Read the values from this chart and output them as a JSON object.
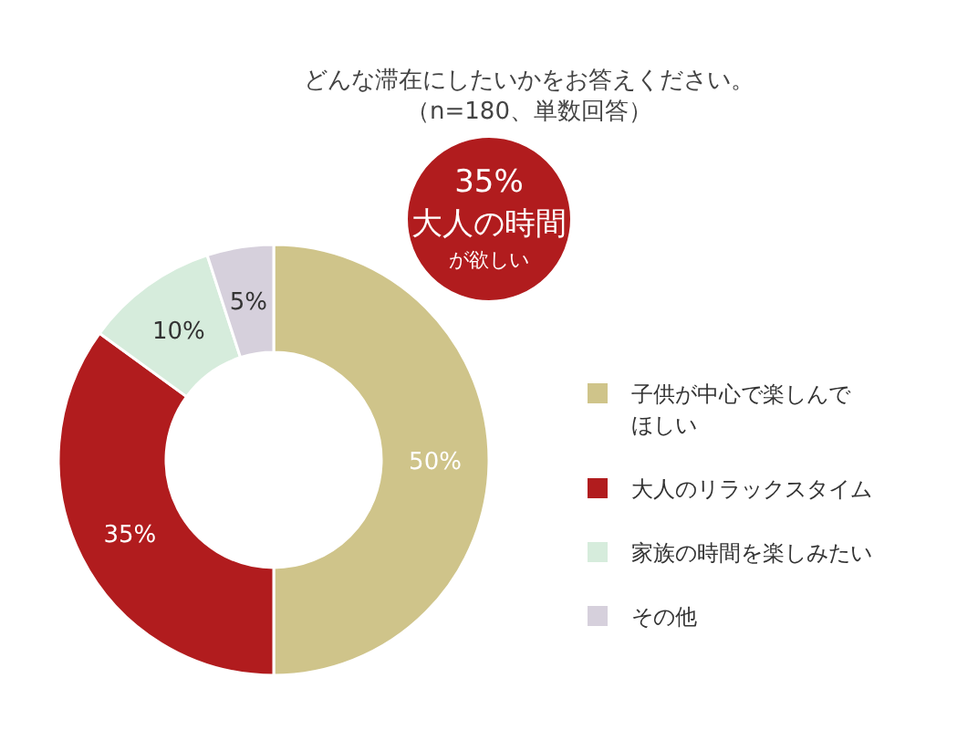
{
  "chart_data": {
    "type": "donut",
    "title": "どんな滞在にしたいかをお答えください。",
    "subtitle": "（n=180、単数回答）",
    "categories": [
      "子供が中心で楽しんでほしい",
      "大人のリラックスタイム",
      "家族の時間を楽しみたい",
      "その他"
    ],
    "values": [
      50,
      35,
      10,
      5
    ],
    "colors": [
      "#cfc48a",
      "#b11c1e",
      "#d6ecdc",
      "#d6d0dc"
    ],
    "value_labels": [
      "50%",
      "35%",
      "10%",
      "5%"
    ],
    "annotations": [
      "35%",
      "大人の時間",
      "が欲しい"
    ],
    "legend": "right"
  }
}
